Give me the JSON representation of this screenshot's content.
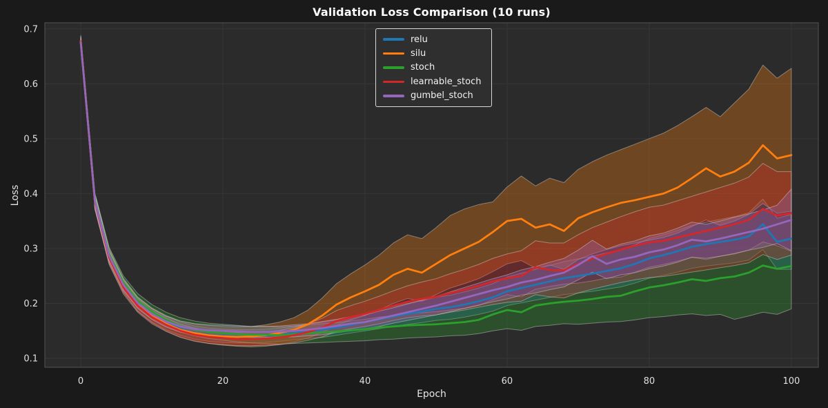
{
  "colors": {
    "figure_bg": "#1a1a1a",
    "plot_bg": "#2b2b2b",
    "grid": "#373737",
    "spine": "#4d4d4d",
    "tick_text": "#e0e0e0",
    "band_edge": "#d7d7d7"
  },
  "legend": {
    "position": "top-center",
    "items": [
      {
        "label": "relu",
        "color": "#1f77b4"
      },
      {
        "label": "silu",
        "color": "#ff7f0e"
      },
      {
        "label": "stoch",
        "color": "#2ca02c"
      },
      {
        "label": "learnable_stoch",
        "color": "#d62728"
      },
      {
        "label": "gumbel_stoch",
        "color": "#9467bd"
      }
    ]
  },
  "chart_data": {
    "type": "line",
    "title": "Validation Loss Comparison (10 runs)",
    "xlabel": "Epoch",
    "ylabel": "Loss",
    "x_ticks": [
      0,
      20,
      40,
      60,
      80,
      100
    ],
    "y_ticks": [
      0.1,
      0.2,
      0.3,
      0.4,
      0.5,
      0.6,
      0.7
    ],
    "xlim": [
      -5.05,
      103.8
    ],
    "ylim": [
      0.0837,
      0.711
    ],
    "grid": true,
    "band_alpha": 0.32,
    "x": [
      0,
      2,
      4,
      6,
      8,
      10,
      12,
      14,
      16,
      18,
      20,
      22,
      24,
      26,
      28,
      30,
      32,
      34,
      36,
      38,
      40,
      42,
      44,
      46,
      48,
      50,
      52,
      54,
      56,
      58,
      60,
      62,
      64,
      66,
      68,
      70,
      72,
      74,
      76,
      78,
      80,
      82,
      84,
      86,
      88,
      90,
      92,
      94,
      96,
      98,
      100
    ],
    "series": [
      {
        "name": "relu",
        "color": "#1f77b4",
        "mean": [
          0.676,
          0.385,
          0.285,
          0.232,
          0.198,
          0.178,
          0.164,
          0.154,
          0.147,
          0.143,
          0.141,
          0.14,
          0.14,
          0.141,
          0.143,
          0.146,
          0.149,
          0.152,
          0.156,
          0.161,
          0.166,
          0.171,
          0.176,
          0.181,
          0.185,
          0.19,
          0.193,
          0.198,
          0.204,
          0.211,
          0.222,
          0.228,
          0.234,
          0.24,
          0.246,
          0.25,
          0.254,
          0.259,
          0.264,
          0.272,
          0.282,
          0.288,
          0.295,
          0.303,
          0.308,
          0.312,
          0.316,
          0.322,
          0.344,
          0.312,
          0.318
        ],
        "lo": [
          0.668,
          0.374,
          0.274,
          0.221,
          0.186,
          0.166,
          0.152,
          0.142,
          0.135,
          0.131,
          0.129,
          0.128,
          0.128,
          0.129,
          0.131,
          0.134,
          0.136,
          0.138,
          0.142,
          0.146,
          0.15,
          0.154,
          0.158,
          0.162,
          0.165,
          0.169,
          0.171,
          0.175,
          0.18,
          0.186,
          0.196,
          0.201,
          0.206,
          0.211,
          0.216,
          0.219,
          0.222,
          0.226,
          0.23,
          0.237,
          0.246,
          0.251,
          0.257,
          0.264,
          0.268,
          0.271,
          0.274,
          0.279,
          0.298,
          0.262,
          0.262
        ],
        "hi": [
          0.684,
          0.396,
          0.296,
          0.243,
          0.21,
          0.19,
          0.176,
          0.166,
          0.159,
          0.155,
          0.153,
          0.152,
          0.152,
          0.153,
          0.155,
          0.158,
          0.162,
          0.166,
          0.17,
          0.176,
          0.182,
          0.188,
          0.194,
          0.2,
          0.205,
          0.211,
          0.215,
          0.221,
          0.228,
          0.236,
          0.248,
          0.255,
          0.262,
          0.269,
          0.276,
          0.281,
          0.286,
          0.292,
          0.298,
          0.307,
          0.318,
          0.325,
          0.333,
          0.342,
          0.348,
          0.353,
          0.358,
          0.365,
          0.39,
          0.355,
          0.362
        ]
      },
      {
        "name": "silu",
        "color": "#ff7f0e",
        "mean": [
          0.678,
          0.386,
          0.286,
          0.233,
          0.199,
          0.178,
          0.163,
          0.152,
          0.146,
          0.142,
          0.14,
          0.139,
          0.14,
          0.142,
          0.146,
          0.152,
          0.162,
          0.178,
          0.198,
          0.211,
          0.222,
          0.234,
          0.252,
          0.263,
          0.256,
          0.272,
          0.288,
          0.3,
          0.312,
          0.33,
          0.35,
          0.354,
          0.338,
          0.344,
          0.332,
          0.355,
          0.366,
          0.375,
          0.383,
          0.388,
          0.394,
          0.4,
          0.411,
          0.428,
          0.446,
          0.431,
          0.44,
          0.456,
          0.488,
          0.464,
          0.47
        ],
        "lo": [
          0.668,
          0.372,
          0.272,
          0.22,
          0.186,
          0.165,
          0.15,
          0.139,
          0.132,
          0.127,
          0.124,
          0.122,
          0.121,
          0.122,
          0.125,
          0.13,
          0.137,
          0.147,
          0.16,
          0.17,
          0.178,
          0.188,
          0.2,
          0.209,
          0.204,
          0.216,
          0.228,
          0.236,
          0.245,
          0.258,
          0.272,
          0.278,
          0.264,
          0.27,
          0.262,
          0.28,
          0.29,
          0.298,
          0.305,
          0.31,
          0.315,
          0.32,
          0.328,
          0.34,
          0.352,
          0.342,
          0.35,
          0.362,
          0.382,
          0.364,
          0.368
        ],
        "hi": [
          0.688,
          0.4,
          0.3,
          0.246,
          0.212,
          0.192,
          0.178,
          0.168,
          0.163,
          0.16,
          0.158,
          0.157,
          0.158,
          0.161,
          0.166,
          0.174,
          0.188,
          0.21,
          0.236,
          0.254,
          0.27,
          0.288,
          0.31,
          0.325,
          0.318,
          0.338,
          0.36,
          0.372,
          0.38,
          0.385,
          0.412,
          0.432,
          0.414,
          0.428,
          0.42,
          0.444,
          0.458,
          0.47,
          0.48,
          0.49,
          0.5,
          0.51,
          0.524,
          0.54,
          0.557,
          0.54,
          0.565,
          0.59,
          0.634,
          0.61,
          0.628
        ]
      },
      {
        "name": "stoch",
        "color": "#2ca02c",
        "mean": [
          0.677,
          0.388,
          0.29,
          0.238,
          0.205,
          0.185,
          0.17,
          0.159,
          0.152,
          0.148,
          0.146,
          0.144,
          0.143,
          0.143,
          0.142,
          0.144,
          0.146,
          0.147,
          0.149,
          0.151,
          0.153,
          0.156,
          0.158,
          0.16,
          0.161,
          0.162,
          0.164,
          0.166,
          0.17,
          0.18,
          0.188,
          0.184,
          0.196,
          0.2,
          0.203,
          0.205,
          0.208,
          0.212,
          0.214,
          0.222,
          0.229,
          0.233,
          0.238,
          0.244,
          0.241,
          0.246,
          0.249,
          0.256,
          0.269,
          0.263,
          0.268
        ],
        "lo": [
          0.668,
          0.376,
          0.278,
          0.226,
          0.193,
          0.173,
          0.159,
          0.148,
          0.141,
          0.136,
          0.133,
          0.13,
          0.128,
          0.127,
          0.126,
          0.127,
          0.128,
          0.129,
          0.13,
          0.131,
          0.132,
          0.134,
          0.135,
          0.137,
          0.138,
          0.139,
          0.141,
          0.142,
          0.145,
          0.15,
          0.154,
          0.151,
          0.158,
          0.16,
          0.163,
          0.162,
          0.164,
          0.166,
          0.167,
          0.17,
          0.174,
          0.176,
          0.179,
          0.181,
          0.178,
          0.18,
          0.171,
          0.177,
          0.184,
          0.18,
          0.19
        ],
        "hi": [
          0.686,
          0.4,
          0.302,
          0.25,
          0.218,
          0.198,
          0.184,
          0.174,
          0.168,
          0.164,
          0.162,
          0.16,
          0.158,
          0.158,
          0.157,
          0.159,
          0.161,
          0.163,
          0.165,
          0.168,
          0.171,
          0.175,
          0.178,
          0.181,
          0.183,
          0.185,
          0.188,
          0.191,
          0.196,
          0.207,
          0.216,
          0.212,
          0.226,
          0.231,
          0.235,
          0.237,
          0.241,
          0.246,
          0.248,
          0.257,
          0.266,
          0.271,
          0.277,
          0.284,
          0.28,
          0.286,
          0.29,
          0.297,
          0.312,
          0.305,
          0.295
        ]
      },
      {
        "name": "learnable_stoch",
        "color": "#d62728",
        "mean": [
          0.677,
          0.384,
          0.283,
          0.229,
          0.196,
          0.175,
          0.161,
          0.15,
          0.143,
          0.139,
          0.137,
          0.135,
          0.135,
          0.136,
          0.138,
          0.142,
          0.148,
          0.156,
          0.168,
          0.175,
          0.181,
          0.188,
          0.196,
          0.203,
          0.208,
          0.212,
          0.219,
          0.225,
          0.232,
          0.24,
          0.246,
          0.25,
          0.266,
          0.261,
          0.26,
          0.272,
          0.282,
          0.29,
          0.298,
          0.305,
          0.311,
          0.314,
          0.32,
          0.326,
          0.332,
          0.338,
          0.344,
          0.352,
          0.372,
          0.36,
          0.364
        ],
        "lo": [
          0.668,
          0.371,
          0.271,
          0.217,
          0.184,
          0.163,
          0.149,
          0.138,
          0.131,
          0.127,
          0.125,
          0.123,
          0.123,
          0.124,
          0.125,
          0.128,
          0.133,
          0.139,
          0.149,
          0.154,
          0.158,
          0.163,
          0.169,
          0.174,
          0.177,
          0.179,
          0.184,
          0.188,
          0.193,
          0.198,
          0.202,
          0.204,
          0.216,
          0.212,
          0.21,
          0.219,
          0.226,
          0.232,
          0.238,
          0.243,
          0.247,
          0.249,
          0.253,
          0.257,
          0.261,
          0.265,
          0.269,
          0.274,
          0.289,
          0.28,
          0.288
        ],
        "hi": [
          0.686,
          0.396,
          0.295,
          0.241,
          0.208,
          0.187,
          0.173,
          0.162,
          0.155,
          0.151,
          0.149,
          0.147,
          0.147,
          0.148,
          0.151,
          0.156,
          0.163,
          0.173,
          0.187,
          0.196,
          0.204,
          0.213,
          0.223,
          0.232,
          0.239,
          0.245,
          0.254,
          0.262,
          0.271,
          0.282,
          0.29,
          0.296,
          0.314,
          0.31,
          0.31,
          0.325,
          0.338,
          0.348,
          0.358,
          0.367,
          0.375,
          0.379,
          0.387,
          0.395,
          0.403,
          0.411,
          0.419,
          0.43,
          0.455,
          0.44,
          0.44
        ]
      },
      {
        "name": "gumbel_stoch",
        "color": "#9467bd",
        "mean": [
          0.676,
          0.386,
          0.287,
          0.234,
          0.201,
          0.181,
          0.167,
          0.158,
          0.153,
          0.151,
          0.15,
          0.149,
          0.148,
          0.148,
          0.149,
          0.15,
          0.152,
          0.155,
          0.159,
          0.163,
          0.166,
          0.172,
          0.178,
          0.184,
          0.19,
          0.196,
          0.203,
          0.21,
          0.217,
          0.224,
          0.23,
          0.238,
          0.243,
          0.25,
          0.256,
          0.27,
          0.286,
          0.272,
          0.28,
          0.285,
          0.293,
          0.298,
          0.306,
          0.316,
          0.313,
          0.318,
          0.324,
          0.33,
          0.336,
          0.344,
          0.352
        ],
        "lo": [
          0.668,
          0.374,
          0.277,
          0.224,
          0.191,
          0.171,
          0.157,
          0.148,
          0.143,
          0.141,
          0.14,
          0.139,
          0.138,
          0.138,
          0.139,
          0.139,
          0.141,
          0.143,
          0.147,
          0.15,
          0.153,
          0.158,
          0.164,
          0.169,
          0.174,
          0.179,
          0.185,
          0.191,
          0.197,
          0.203,
          0.208,
          0.215,
          0.219,
          0.225,
          0.23,
          0.243,
          0.257,
          0.245,
          0.252,
          0.256,
          0.263,
          0.268,
          0.275,
          0.284,
          0.282,
          0.286,
          0.291,
          0.297,
          0.302,
          0.309,
          0.296
        ],
        "hi": [
          0.684,
          0.398,
          0.297,
          0.244,
          0.211,
          0.191,
          0.177,
          0.168,
          0.163,
          0.161,
          0.16,
          0.159,
          0.158,
          0.158,
          0.159,
          0.161,
          0.163,
          0.167,
          0.171,
          0.176,
          0.179,
          0.186,
          0.192,
          0.199,
          0.206,
          0.213,
          0.221,
          0.229,
          0.237,
          0.245,
          0.252,
          0.261,
          0.267,
          0.275,
          0.282,
          0.297,
          0.315,
          0.299,
          0.308,
          0.314,
          0.323,
          0.328,
          0.337,
          0.348,
          0.344,
          0.35,
          0.357,
          0.363,
          0.37,
          0.379,
          0.408
        ]
      }
    ]
  }
}
